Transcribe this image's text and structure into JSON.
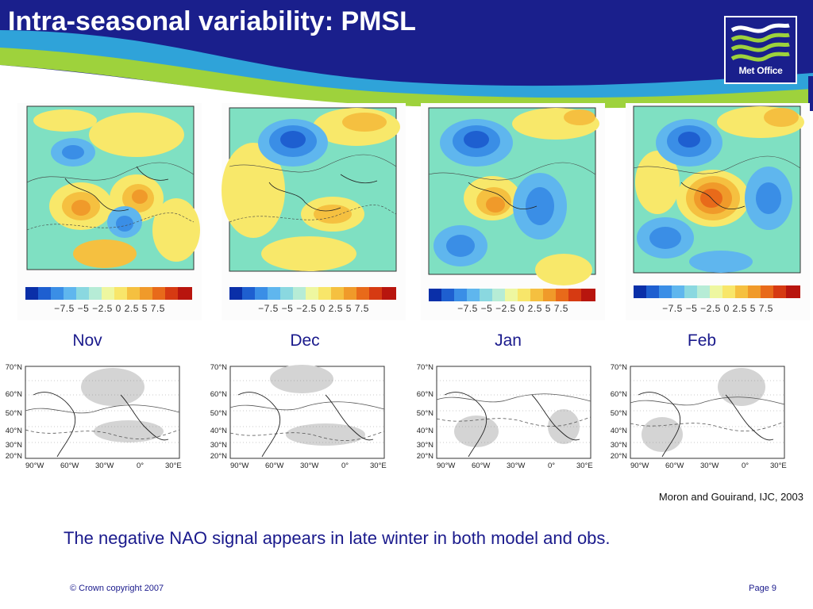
{
  "slide": {
    "title": "Intra-seasonal variability: PMSL",
    "logo_text": "Met Office",
    "citation": "Moron and Gouirand, IJC, 2003",
    "caption": "The negative NAO signal appears in late winter in both model and obs.",
    "copyright": "© Crown copyright 2007",
    "page": "Page 9"
  },
  "colorbar": {
    "tick_labels": "−7.5 −5 −2.5  0   2.5   5   7.5",
    "colors": [
      "#0a2fa8",
      "#1e5fd0",
      "#3a8ee6",
      "#5fb6ee",
      "#8ad8e0",
      "#b6ecd6",
      "#eef7a0",
      "#f8e66a",
      "#f5c040",
      "#f09a2a",
      "#e86a1a",
      "#d63a12",
      "#b8150e"
    ]
  },
  "months": [
    "Nov",
    "Dec",
    "Jan",
    "Feb"
  ],
  "obs_axes": {
    "lat_labels": [
      "70°N",
      "60°N",
      "50°N",
      "40°N",
      "30°N",
      "20°N"
    ],
    "lon_labels": [
      "90°W",
      "60°W",
      "30°W",
      "0°",
      "30°E"
    ]
  },
  "colors": {
    "header_blue": "#1a1f8c",
    "accent_green": "#9ed23c",
    "text_blue": "#1a1a8c"
  }
}
